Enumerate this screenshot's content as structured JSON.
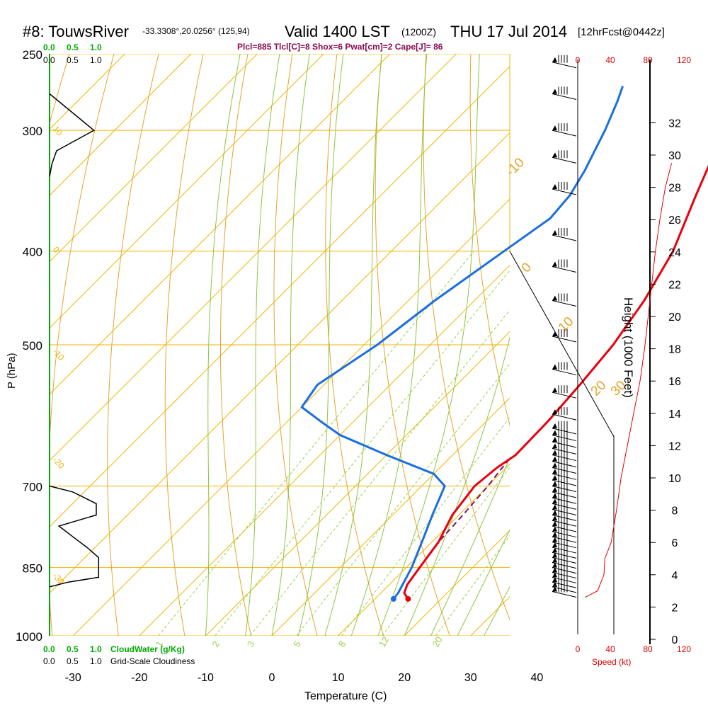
{
  "header": {
    "station": "#8: TouwsRiver",
    "coords": "-33.3308°,20.0256° (125,94)",
    "valid": "Valid 1400 LST",
    "zulu": "(1200Z)",
    "date": "THU 17 Jul 2014",
    "forecast": "[12hrFcst@0442z]",
    "indices": "Plcl=885 Tlcl[C]=8 Shox=6 Pwat[cm]=2 Cape[J]= 86"
  },
  "colors": {
    "isotherm": "#f0b400",
    "dry_adiabat": "#e3a52a",
    "moist_adiabat": "#8cc63f",
    "mixing_ratio": "#9ad14b",
    "temperature": "#e8000c",
    "dewpoint": "#1a6fe0",
    "parcel": "#7a1466",
    "cloud": "#00aa00",
    "wind_speed": "#dd0000",
    "text": "#000000",
    "indices": "#8b0a50"
  },
  "chart_data": {
    "type": "line",
    "xlabel": "Temperature (C)",
    "ylabel": "P (hPa)",
    "x_ticks": [
      -30,
      -20,
      -10,
      0,
      10,
      20,
      30,
      40
    ],
    "p_ticks": [
      250,
      300,
      400,
      500,
      700,
      850,
      1000
    ],
    "xlim": [
      -34,
      36
    ],
    "plim": [
      1000,
      250
    ],
    "isotherm_skew": "45deg",
    "dry_adiabat_labels": [
      "-10",
      "0",
      "10",
      "20",
      "30"
    ],
    "isotherm_labels": [
      "10",
      "0",
      "-10",
      "-20",
      "-30"
    ],
    "mixing_ratio_labels": [
      "1",
      "2",
      "3",
      "5",
      "8",
      "12",
      "20"
    ],
    "temperature": [
      {
        "p": 916,
        "t": 15.0
      },
      {
        "p": 903,
        "t": 13.5
      },
      {
        "p": 885,
        "t": 12.7
      },
      {
        "p": 850,
        "t": 12.0
      },
      {
        "p": 800,
        "t": 11.0
      },
      {
        "p": 750,
        "t": 9.0
      },
      {
        "p": 700,
        "t": 8.0
      },
      {
        "p": 670,
        "t": 8.6
      },
      {
        "p": 650,
        "t": 9.5
      },
      {
        "p": 600,
        "t": 9.3
      },
      {
        "p": 550,
        "t": 8.6
      },
      {
        "p": 500,
        "t": 7.6
      },
      {
        "p": 450,
        "t": 5.6
      },
      {
        "p": 400,
        "t": 2.5
      },
      {
        "p": 350,
        "t": -2.5
      },
      {
        "p": 300,
        "t": -8.0
      },
      {
        "p": 270,
        "t": -11.5
      }
    ],
    "dewpoint": [
      {
        "p": 916,
        "t": 12.8
      },
      {
        "p": 903,
        "t": 12.6
      },
      {
        "p": 850,
        "t": 10.8
      },
      {
        "p": 800,
        "t": 8.5
      },
      {
        "p": 750,
        "t": 6.0
      },
      {
        "p": 700,
        "t": 3.5
      },
      {
        "p": 680,
        "t": 0.0
      },
      {
        "p": 650,
        "t": -10.0
      },
      {
        "p": 620,
        "t": -20.0
      },
      {
        "p": 600,
        "t": -25.0
      },
      {
        "p": 580,
        "t": -30.0
      },
      {
        "p": 550,
        "t": -31.0
      },
      {
        "p": 500,
        "t": -28.0
      },
      {
        "p": 450,
        "t": -26.0
      },
      {
        "p": 400,
        "t": -23.0
      },
      {
        "p": 370,
        "t": -21.0
      },
      {
        "p": 350,
        "t": -21.5
      },
      {
        "p": 330,
        "t": -23.0
      },
      {
        "p": 300,
        "t": -26.0
      },
      {
        "p": 280,
        "t": -28.5
      },
      {
        "p": 270,
        "t": -30.0
      }
    ],
    "parcel": [
      {
        "p": 885,
        "t": 12.7
      },
      {
        "p": 850,
        "t": 12.0
      },
      {
        "p": 800,
        "t": 11.0
      },
      {
        "p": 750,
        "t": 10.6
      },
      {
        "p": 700,
        "t": 10.0
      },
      {
        "p": 680,
        "t": 9.6
      },
      {
        "p": 660,
        "t": 9.2
      }
    ],
    "surface": {
      "p": 916,
      "t": 15.0,
      "td": 12.8
    },
    "cloud_scale": {
      "top_ticks_green": [
        "0.0",
        "0.5",
        "1.0"
      ],
      "top_ticks_black": [
        "0.0",
        "0.5",
        "1.0"
      ],
      "bottom_ticks_green": [
        "0.0",
        "0.5",
        "1.0"
      ],
      "bottom_ticks_black": [
        "0.0",
        "0.5",
        "1.0"
      ],
      "cloudwater_label": "CloudWater (g/Kg)",
      "cloudiness_label": "Grid-Scale Cloudiness"
    },
    "cloudiness_profile": [
      {
        "p": 275,
        "v": 0.0
      },
      {
        "p": 300,
        "v": 0.95
      },
      {
        "p": 315,
        "v": 0.15
      },
      {
        "p": 325,
        "v": 0.05
      },
      {
        "p": 335,
        "v": 0.0
      },
      {
        "p": 700,
        "v": 0.0
      },
      {
        "p": 710,
        "v": 0.5
      },
      {
        "p": 730,
        "v": 1.0
      },
      {
        "p": 750,
        "v": 1.0
      },
      {
        "p": 770,
        "v": 0.2
      },
      {
        "p": 790,
        "v": 0.5
      },
      {
        "p": 810,
        "v": 0.8
      },
      {
        "p": 830,
        "v": 1.05
      },
      {
        "p": 870,
        "v": 1.05
      },
      {
        "p": 880,
        "v": 0.4
      },
      {
        "p": 890,
        "v": 0.0
      }
    ],
    "wind_speed_scale": {
      "ticks": [
        "0",
        "40",
        "80",
        "120"
      ],
      "label": "Speed (kt)"
    },
    "wind_speed_profile": [
      {
        "h": 2.6,
        "s": 8
      },
      {
        "h": 3.0,
        "s": 22
      },
      {
        "h": 4.0,
        "s": 29
      },
      {
        "h": 5.0,
        "s": 30
      },
      {
        "h": 6.0,
        "s": 37
      },
      {
        "h": 8.0,
        "s": 43
      },
      {
        "h": 10.0,
        "s": 48
      },
      {
        "h": 12.0,
        "s": 55
      },
      {
        "h": 14.0,
        "s": 62
      },
      {
        "h": 16.0,
        "s": 69
      },
      {
        "h": 18.0,
        "s": 74
      },
      {
        "h": 20.0,
        "s": 78
      },
      {
        "h": 22.0,
        "s": 82
      },
      {
        "h": 24.0,
        "s": 86
      },
      {
        "h": 26.0,
        "s": 91
      },
      {
        "h": 28.0,
        "s": 97
      },
      {
        "h": 29.5,
        "s": 104
      }
    ],
    "height_axis": {
      "label": "Height (1000 Feet)",
      "ticks": [
        0,
        2,
        4,
        6,
        8,
        10,
        12,
        14,
        16,
        18,
        20,
        22,
        24,
        26,
        28,
        30,
        32
      ]
    },
    "wind_barbs_p": [
      255,
      275,
      300,
      320,
      345,
      385,
      415,
      450,
      490,
      530,
      560,
      590,
      610,
      620,
      630,
      640,
      650,
      660,
      670,
      680,
      690,
      700,
      710,
      720,
      730,
      740,
      750,
      760,
      770,
      780,
      790,
      800,
      810,
      820,
      830,
      840,
      850,
      860,
      870,
      880,
      890,
      900
    ]
  }
}
